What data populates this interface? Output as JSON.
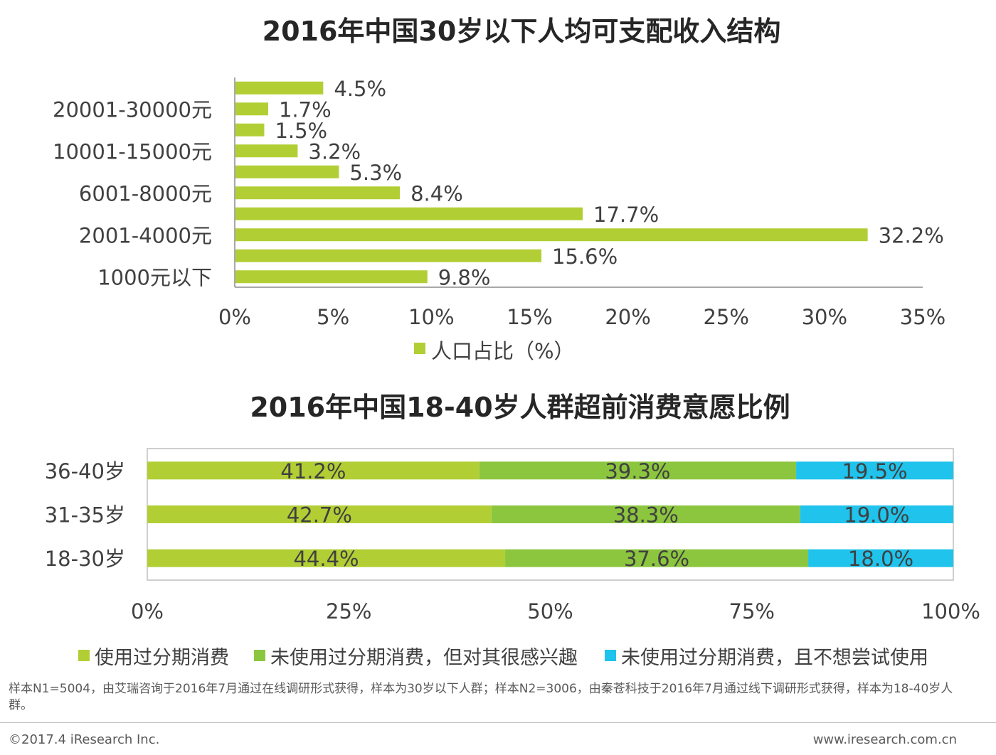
{
  "chart_data": [
    {
      "type": "bar",
      "orientation": "horizontal",
      "title": "2016年中国30岁以下人均可支配收入结构",
      "categories": [
        "1000元以下",
        "",
        "2001-4000元",
        "",
        "6001-8000元",
        "",
        "10001-15000元",
        "",
        "20001-30000元",
        ""
      ],
      "values": [
        9.8,
        15.6,
        32.2,
        17.7,
        8.4,
        5.3,
        3.2,
        1.5,
        1.7,
        4.5
      ],
      "value_labels": [
        "9.8%",
        "15.6%",
        "32.2%",
        "17.7%",
        "8.4%",
        "5.3%",
        "3.2%",
        "1.5%",
        "1.7%",
        "4.5%"
      ],
      "xlim": [
        0,
        35
      ],
      "xticks": [
        "0%",
        "5%",
        "10%",
        "15%",
        "20%",
        "25%",
        "30%",
        "35%"
      ],
      "legend": [
        {
          "name": "人口占比（%）",
          "color": "#b1cf35"
        }
      ],
      "color": "#b1cf35",
      "grid": false
    },
    {
      "type": "bar",
      "orientation": "horizontal",
      "stacked": true,
      "title": "2016年中国18-40岁人群超前消费意愿比例",
      "categories": [
        "18-30岁",
        "31-35岁",
        "36-40岁"
      ],
      "series": [
        {
          "name": "使用过分期消费",
          "color": "#b1cf35",
          "values": [
            44.4,
            42.7,
            41.2
          ],
          "labels": [
            "44.4%",
            "42.7%",
            "41.2%"
          ]
        },
        {
          "name": "未使用过分期消费，但对其很感兴趣",
          "color": "#8cc63f",
          "values": [
            37.6,
            38.3,
            39.3
          ],
          "labels": [
            "37.6%",
            "38.3%",
            "39.3%"
          ]
        },
        {
          "name": "未使用过分期消费，且不想尝试使用",
          "color": "#1fc3ec",
          "values": [
            18.0,
            19.0,
            19.5
          ],
          "labels": [
            "18.0%",
            "19.0%",
            "19.5%"
          ]
        }
      ],
      "xlim": [
        0,
        100
      ],
      "xticks": [
        "0%",
        "25%",
        "50%",
        "75%",
        "100%"
      ],
      "grid": false
    }
  ],
  "footer": {
    "note": "样本N1=5004，由艾瑞咨询于2016年7月通过在线调研形式获得，样本为30岁以下人群；样本N2=3006，由秦苍科技于2016年7月通过线下调研形式获得，样本为18-40岁人群。",
    "copyright": "©2017.4 iResearch Inc.",
    "website": "www.iresearch.com.cn"
  }
}
